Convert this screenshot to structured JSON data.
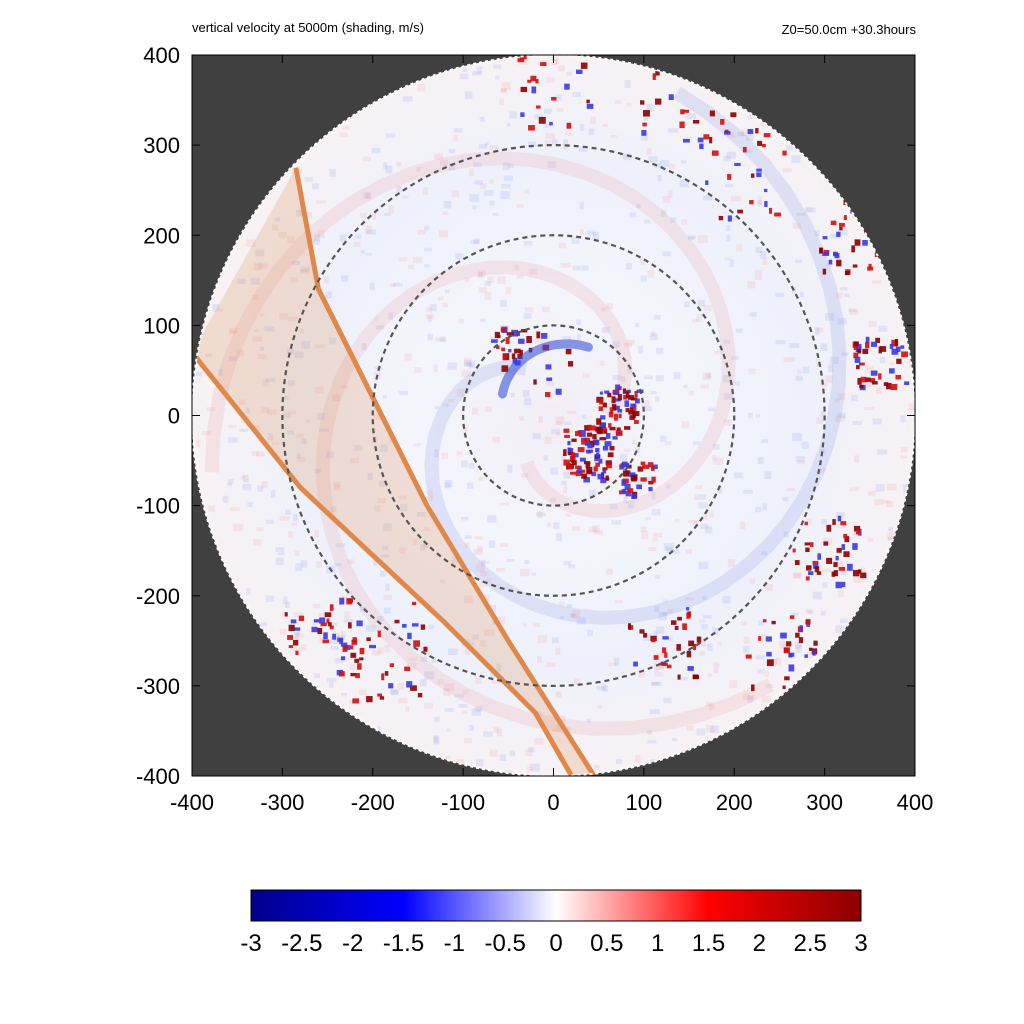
{
  "header": {
    "title": "vertical velocity at 5000m (shading, m/s)",
    "info": "Z0=50.0cm  +30.3hours"
  },
  "chart_data": {
    "type": "heatmap",
    "title": "vertical velocity at 5000m (shading, m/s)",
    "annotation": "Z0=50.0cm  +30.3hours",
    "xlim": [
      -400,
      400
    ],
    "ylim": [
      -400,
      400
    ],
    "x_ticks": [
      "-400",
      "-300",
      "-200",
      "-100",
      "0",
      "100",
      "200",
      "300",
      "400"
    ],
    "y_ticks": [
      "400",
      "300",
      "200",
      "100",
      "0",
      "-100",
      "-200",
      "-300",
      "-400"
    ],
    "domain_radius": 400,
    "range_rings": [
      100,
      200,
      300
    ],
    "colorbar": {
      "min": -3,
      "max": 3,
      "ticks": [
        "-3",
        "-2.5",
        "-2",
        "-1.5",
        "-1",
        "-0.5",
        "0",
        "0.5",
        "1",
        "1.5",
        "2",
        "2.5",
        "3"
      ],
      "colors": [
        "#00008b",
        "#0000ff",
        "#ffffff",
        "#ff0000",
        "#8b0000"
      ]
    },
    "background_color": "#404040",
    "highlight_band": {
      "color": "#e0884a",
      "outer_edge": [
        [
          -285,
          275
        ],
        [
          -260,
          140
        ],
        [
          -140,
          -100
        ],
        [
          -50,
          -250
        ],
        [
          45,
          -400
        ]
      ],
      "inner_edge": [
        [
          -400,
          70
        ],
        [
          -280,
          -80
        ],
        [
          -120,
          -230
        ],
        [
          -20,
          -330
        ],
        [
          20,
          -400
        ]
      ]
    }
  }
}
